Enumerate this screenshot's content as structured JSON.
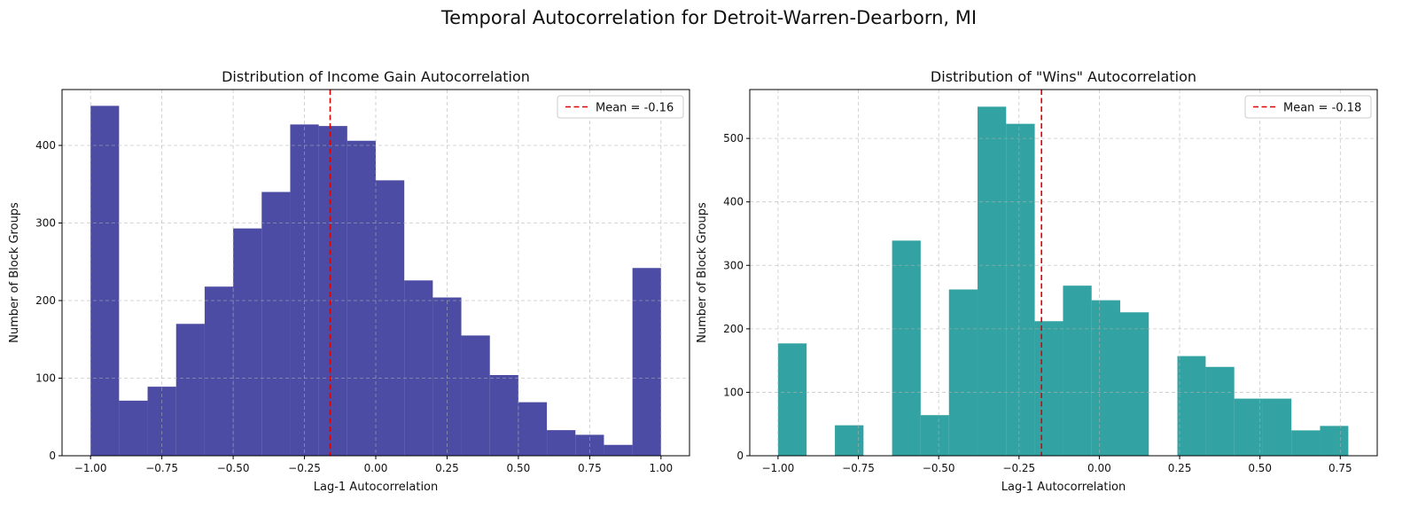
{
  "figure": {
    "title": "Temporal Autocorrelation for Detroit-Warren-Dearborn, MI"
  },
  "chart_data": [
    {
      "type": "bar",
      "title": "Distribution of Income Gain Autocorrelation",
      "xlabel": "Lag-1 Autocorrelation",
      "ylabel": "Number of Block Groups",
      "xlim": [
        -1.1,
        1.1
      ],
      "ylim": [
        0,
        472
      ],
      "xticks": [
        -1.0,
        -0.75,
        -0.5,
        -0.25,
        0.0,
        0.25,
        0.5,
        0.75,
        1.0
      ],
      "xtick_labels": [
        "−1.00",
        "−0.75",
        "−0.50",
        "−0.25",
        "0.00",
        "0.25",
        "0.50",
        "0.75",
        "1.00"
      ],
      "yticks": [
        0,
        100,
        200,
        300,
        400
      ],
      "ytick_labels": [
        "0",
        "100",
        "200",
        "300",
        "400"
      ],
      "bin_edges": [
        -1.0,
        -0.9,
        -0.8,
        -0.7,
        -0.6,
        -0.5,
        -0.4,
        -0.3,
        -0.2,
        -0.1,
        0.0,
        0.1,
        0.2,
        0.3,
        0.4,
        0.5,
        0.6,
        0.7,
        0.8,
        0.9,
        1.0
      ],
      "values": [
        451,
        71,
        89,
        170,
        218,
        293,
        340,
        427,
        425,
        406,
        355,
        226,
        204,
        155,
        104,
        69,
        33,
        27,
        14,
        242
      ],
      "color": "#1f1f8f",
      "mean": -0.16,
      "legend": {
        "label": "Mean = -0.16",
        "position": "upper right"
      },
      "grid": true
    },
    {
      "type": "bar",
      "title": "Distribution of \"Wins\" Autocorrelation",
      "xlabel": "Lag-1 Autocorrelation",
      "ylabel": "Number of Block Groups",
      "xlim": [
        -1.088,
        0.865
      ],
      "ylim": [
        0,
        577
      ],
      "xticks": [
        -1.0,
        -0.75,
        -0.5,
        -0.25,
        0.0,
        0.25,
        0.5,
        0.75
      ],
      "xtick_labels": [
        "−1.00",
        "−0.75",
        "−0.50",
        "−0.25",
        "0.00",
        "0.25",
        "0.50",
        "0.75"
      ],
      "yticks": [
        0,
        100,
        200,
        300,
        400,
        500
      ],
      "ytick_labels": [
        "0",
        "100",
        "200",
        "300",
        "400",
        "500"
      ],
      "bin_edges": [
        -1.0,
        -0.911,
        -0.823,
        -0.734,
        -0.645,
        -0.556,
        -0.468,
        -0.379,
        -0.29,
        -0.201,
        -0.113,
        -0.024,
        0.065,
        0.154,
        0.243,
        0.331,
        0.42,
        0.509,
        0.598,
        0.687,
        0.775
      ],
      "values": [
        177,
        0,
        48,
        0,
        339,
        64,
        262,
        550,
        523,
        212,
        268,
        245,
        226,
        0,
        157,
        140,
        90,
        90,
        40,
        47
      ],
      "color": "#008b8b",
      "mean": -0.18,
      "legend": {
        "label": "Mean = -0.18",
        "position": "upper right"
      },
      "grid": true
    }
  ]
}
